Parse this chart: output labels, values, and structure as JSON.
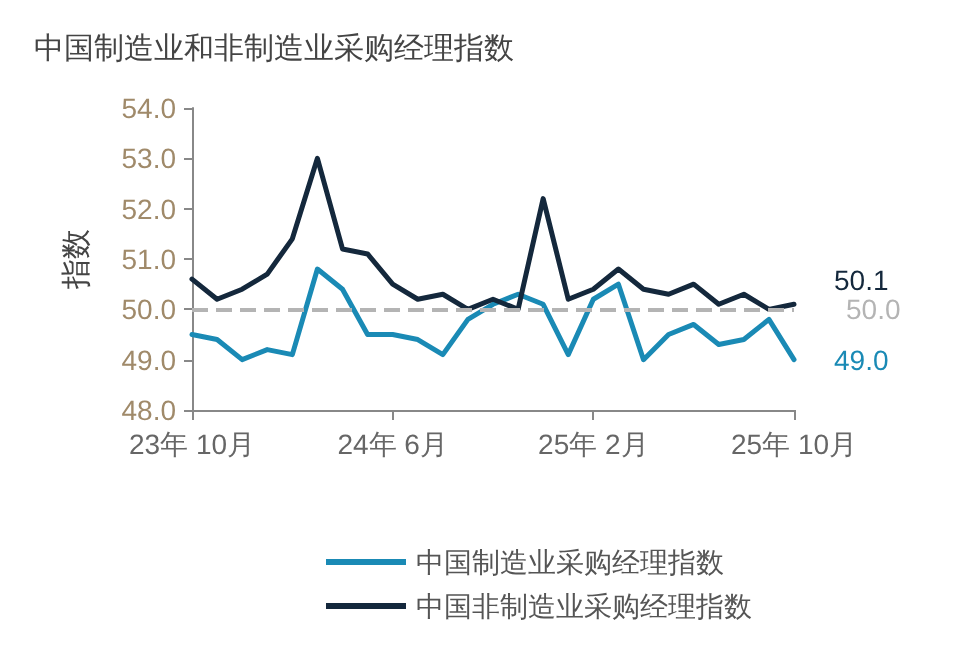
{
  "chart_data": {
    "type": "line",
    "title": "中国制造业和非制造业采购经理指数",
    "ylabel": "指数",
    "categories": [
      "23年 10月",
      null,
      null,
      null,
      null,
      null,
      null,
      null,
      "24年 6月",
      null,
      null,
      null,
      null,
      null,
      null,
      null,
      "25年 2月",
      null,
      null,
      null,
      null,
      null,
      null,
      null,
      "25年 10月"
    ],
    "series": [
      {
        "name": "中国制造业采购经理指数",
        "color": "#1a8ab5",
        "values": [
          49.5,
          49.4,
          49.0,
          49.2,
          49.1,
          50.8,
          50.4,
          49.5,
          49.5,
          49.4,
          49.1,
          49.8,
          50.1,
          50.3,
          50.1,
          49.1,
          50.2,
          50.5,
          49.0,
          49.5,
          49.7,
          49.3,
          49.4,
          49.8,
          49.0
        ],
        "value_labels": [
          null,
          null,
          null,
          null,
          null,
          null,
          null,
          null,
          null,
          null,
          null,
          null,
          null,
          null,
          null,
          null,
          null,
          null,
          null,
          null,
          null,
          null,
          null,
          null,
          "49.0"
        ]
      },
      {
        "name": "中国非制造业采购经理指数",
        "color": "#14283c",
        "values": [
          50.6,
          50.2,
          50.4,
          50.7,
          51.4,
          53.0,
          51.2,
          51.1,
          50.5,
          50.2,
          50.3,
          50.0,
          50.2,
          50.0,
          52.2,
          50.2,
          50.4,
          50.8,
          50.4,
          50.3,
          50.5,
          50.1,
          50.3,
          50.0,
          50.1
        ],
        "value_labels": [
          null,
          null,
          null,
          null,
          null,
          null,
          null,
          null,
          null,
          null,
          null,
          null,
          null,
          null,
          null,
          null,
          null,
          null,
          null,
          null,
          null,
          null,
          null,
          null,
          "50.1"
        ]
      }
    ],
    "ylim": [
      48.0,
      54.0
    ],
    "yticks": [
      {
        "value": 48,
        "label": "48.0"
      },
      {
        "value": 49,
        "label": "49.0"
      },
      {
        "value": 50,
        "label": "50.0"
      },
      {
        "value": 51,
        "label": "51.0"
      },
      {
        "value": 52,
        "label": "52.0"
      },
      {
        "value": 53,
        "label": "53.0"
      },
      {
        "value": 54,
        "label": "54.0"
      }
    ],
    "ref_lines": [
      {
        "axis": "y",
        "value": 50,
        "label": "50.0",
        "color": "#b4b4b4",
        "line_style": "dashed"
      }
    ],
    "grid": false,
    "legend": "bottom",
    "marker": "none",
    "line_style": "solid"
  }
}
